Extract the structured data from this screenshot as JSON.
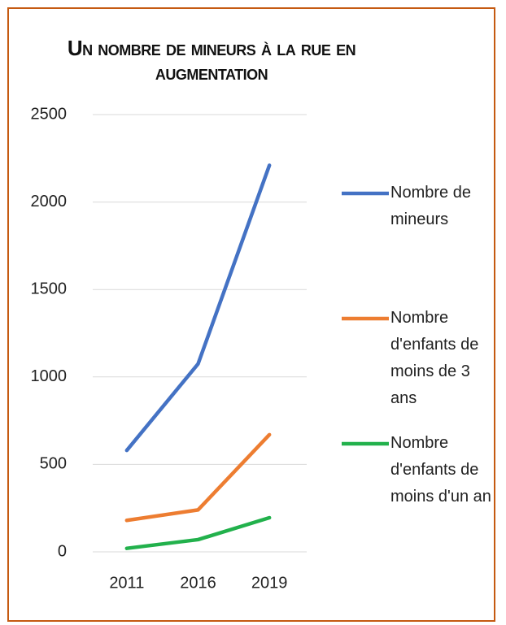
{
  "chart_data": {
    "type": "line",
    "title": "Un nombre de mineurs à la rue en augmentation",
    "categories": [
      "2011",
      "2016",
      "2019"
    ],
    "series": [
      {
        "name": "Nombre de mineurs",
        "color": "#4472c4",
        "values": [
          580,
          1075,
          2210
        ]
      },
      {
        "name": "Nombre d'enfants de moins de 3 ans",
        "color": "#ed7d31",
        "values": [
          180,
          240,
          670
        ]
      },
      {
        "name": "Nombre d'enfants de moins d'un an",
        "color": "#22b14c",
        "values": [
          20,
          70,
          195
        ]
      }
    ],
    "ylim": [
      0,
      2500
    ],
    "yticks": [
      0,
      500,
      1000,
      1500,
      2000,
      2500
    ],
    "grid": true,
    "legend": "right"
  }
}
